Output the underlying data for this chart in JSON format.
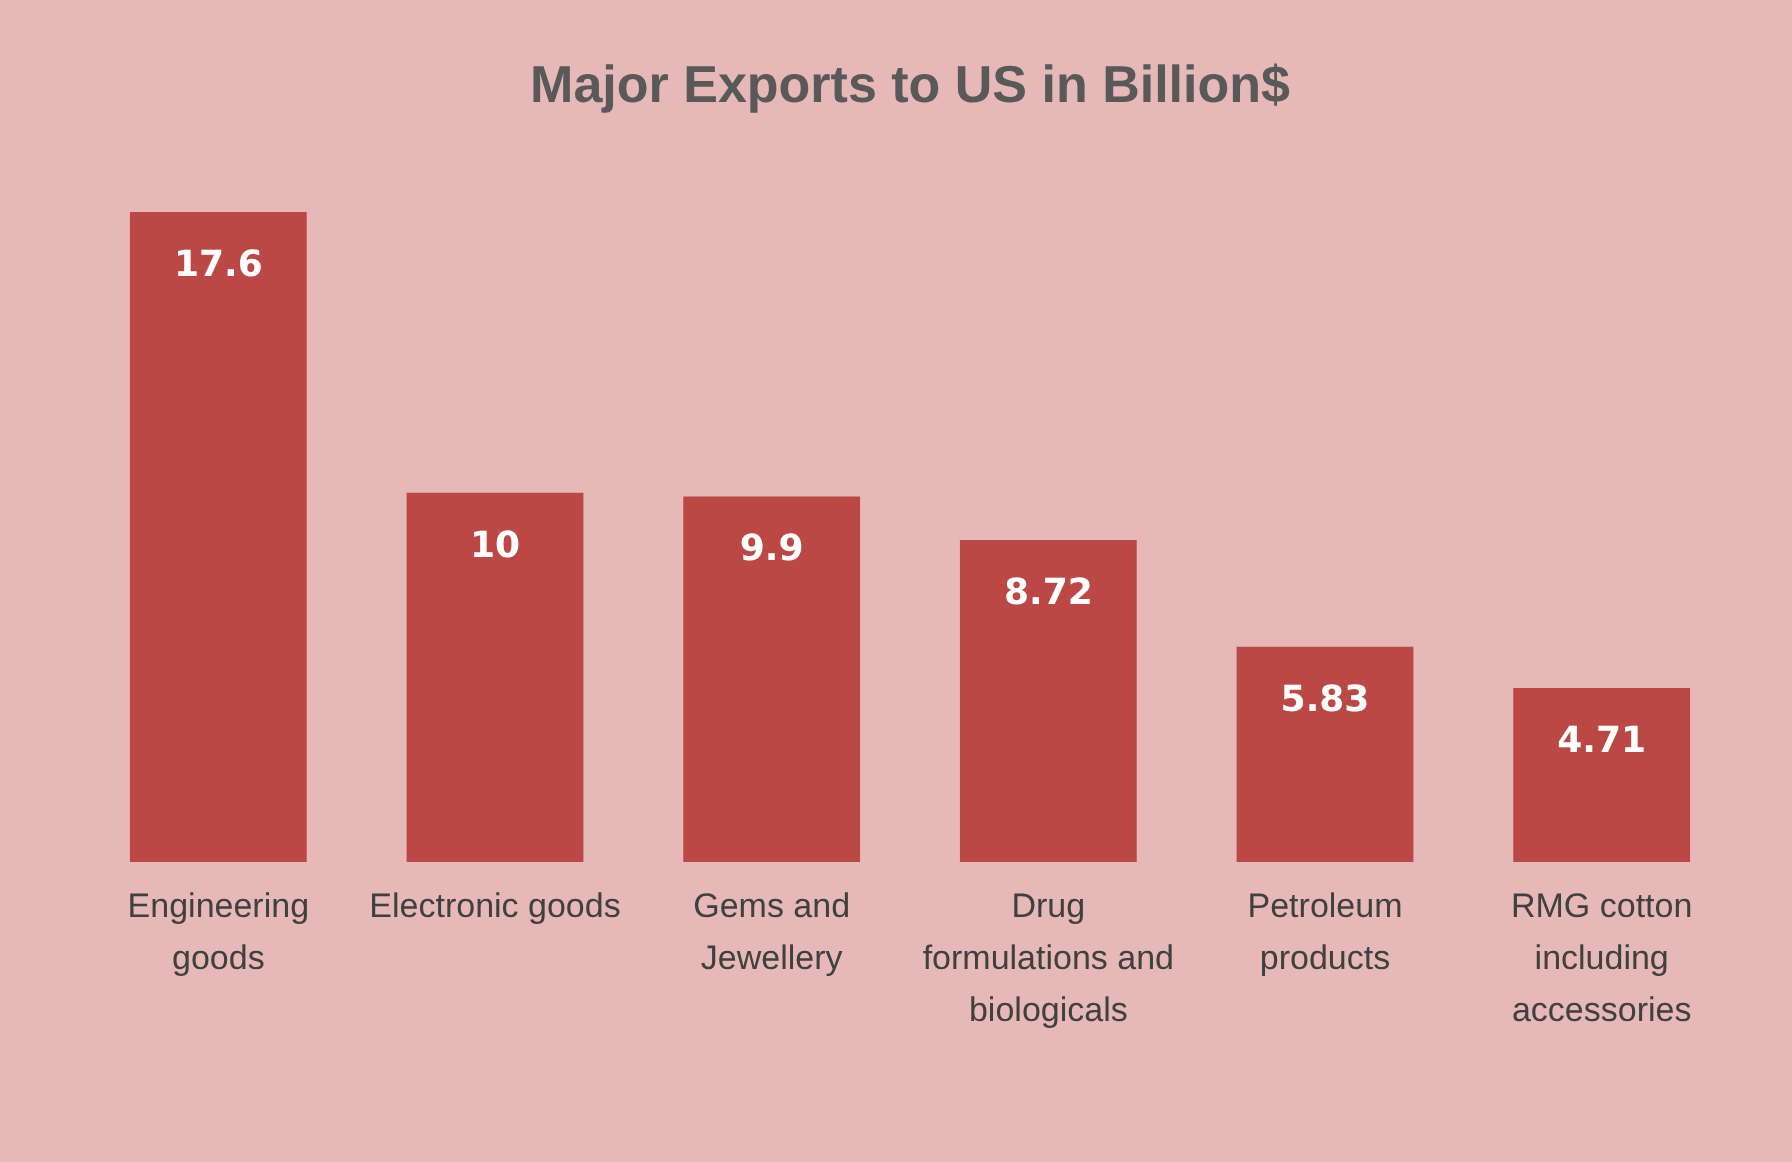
{
  "chart_data": {
    "type": "bar",
    "title": "Major Exports to US in Billion$",
    "categories": [
      "Engineering goods",
      "Electronic goods",
      "Gems and Jewellery",
      "Drug formulations and biologicals",
      "Petroleum products",
      "RMG cotton including accessories"
    ],
    "values": [
      17.6,
      10,
      9.9,
      8.72,
      5.83,
      4.71
    ],
    "color": "#bb4845",
    "data_labels": true
  }
}
